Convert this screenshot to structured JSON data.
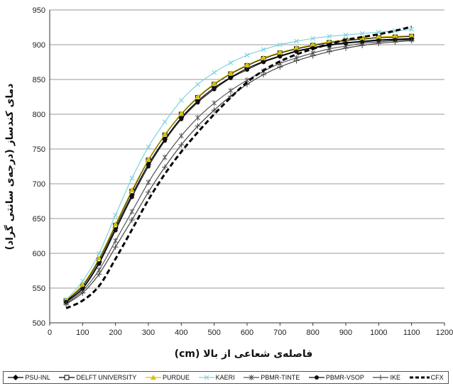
{
  "chart_data": {
    "type": "line",
    "title": "",
    "xlabel": "فاصله‌ی شعاعی از بالا (cm)",
    "ylabel": "دمای کندساز (درجه‌ی سانتی گراد)",
    "xlim": [
      0,
      1200
    ],
    "ylim": [
      500,
      950
    ],
    "xticks": [
      "0",
      "100",
      "200",
      "300",
      "400",
      "500",
      "600",
      "700",
      "800",
      "900",
      "1000",
      "1100",
      "1200"
    ],
    "yticks": [
      "500",
      "550",
      "600",
      "650",
      "700",
      "750",
      "800",
      "850",
      "900",
      "950"
    ],
    "grid": "horizontal",
    "legend_position": "bottom",
    "x": [
      50,
      100,
      150,
      200,
      250,
      300,
      350,
      400,
      450,
      500,
      550,
      600,
      650,
      700,
      750,
      800,
      850,
      900,
      950,
      1000,
      1050,
      1100
    ],
    "series": [
      {
        "name": "PSU-INL",
        "color": "#000000",
        "marker": "diamond",
        "dash": false,
        "values": [
          531,
          550,
          587,
          636,
          684,
          728,
          764,
          795,
          819,
          838,
          853,
          866,
          876,
          884,
          891,
          896,
          900,
          903,
          905,
          907,
          908,
          909
        ]
      },
      {
        "name": "DELFT UNIVERSITY",
        "color": "#000000",
        "marker": "square-open",
        "dash": false,
        "values": [
          532,
          553,
          591,
          640,
          689,
          734,
          770,
          800,
          824,
          843,
          858,
          870,
          880,
          888,
          894,
          899,
          903,
          906,
          908,
          910,
          911,
          912
        ]
      },
      {
        "name": "PURDUE",
        "color": "#d4c200",
        "marker": "triangle",
        "dash": false,
        "values": [
          533,
          555,
          593,
          642,
          691,
          735,
          771,
          801,
          825,
          844,
          859,
          871,
          881,
          889,
          895,
          900,
          904,
          907,
          909,
          911,
          912,
          913
        ]
      },
      {
        "name": "KAERI",
        "color": "#7fd3df",
        "marker": "x",
        "dash": false,
        "values": [
          533,
          560,
          600,
          655,
          708,
          753,
          789,
          820,
          843,
          860,
          874,
          885,
          893,
          900,
          905,
          909,
          912,
          914,
          916,
          918,
          920,
          922
        ]
      },
      {
        "name": "PBMR-TINTE",
        "color": "#555555",
        "marker": "star",
        "dash": false,
        "values": [
          528,
          546,
          576,
          618,
          660,
          702,
          738,
          769,
          795,
          816,
          834,
          849,
          862,
          873,
          881,
          888,
          894,
          898,
          902,
          904,
          906,
          907
        ]
      },
      {
        "name": "PBMR-VSOP",
        "color": "#111111",
        "marker": "circle",
        "dash": false,
        "values": [
          530,
          549,
          585,
          633,
          681,
          725,
          762,
          793,
          817,
          836,
          852,
          864,
          875,
          883,
          890,
          895,
          899,
          902,
          904,
          906,
          907,
          908
        ]
      },
      {
        "name": "IKE",
        "color": "#444444",
        "marker": "plus",
        "dash": false,
        "values": [
          527,
          543,
          570,
          609,
          648,
          688,
          724,
          756,
          783,
          806,
          826,
          843,
          857,
          868,
          877,
          884,
          890,
          895,
          899,
          902,
          904,
          906
        ]
      },
      {
        "name": "CFX",
        "color": "#000000",
        "marker": "none",
        "dash": true,
        "values": [
          521,
          532,
          553,
          592,
          634,
          677,
          714,
          746,
          774,
          800,
          824,
          846,
          863,
          876,
          886,
          894,
          901,
          907,
          911,
          915,
          920,
          926
        ]
      }
    ]
  }
}
